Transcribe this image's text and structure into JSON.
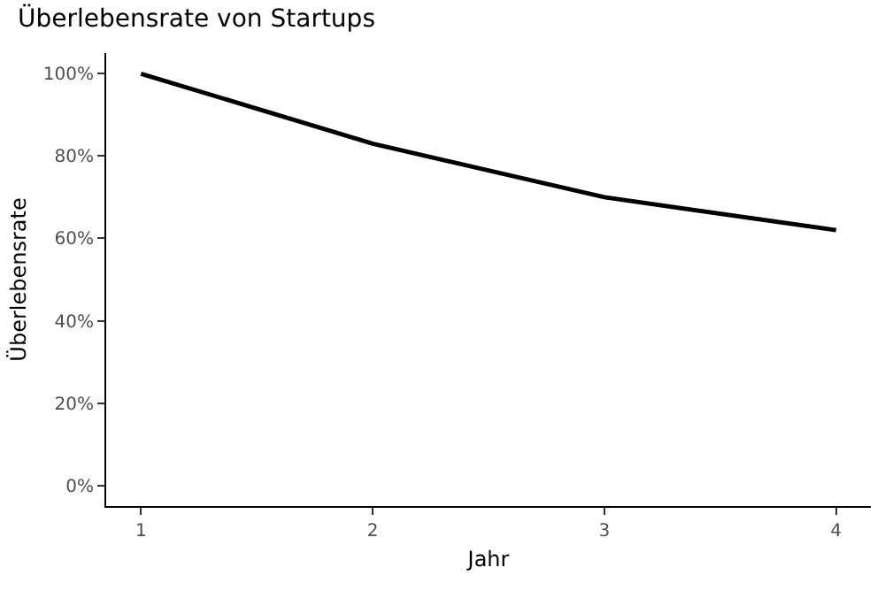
{
  "chart_data": {
    "type": "line",
    "title": "Überlebensrate von Startups",
    "xlabel": "Jahr",
    "ylabel": "Überlebensrate",
    "x": [
      1,
      2,
      3,
      4
    ],
    "series": [
      {
        "color": "#000000",
        "values": [
          100,
          83,
          70,
          62
        ]
      }
    ],
    "xlim": [
      0.85,
      4.15
    ],
    "xticks": [
      1,
      2,
      3,
      4
    ],
    "ylim": [
      -5,
      105
    ],
    "yticks": [
      {
        "value": 0,
        "label": "0%"
      },
      {
        "value": 20,
        "label": "20%"
      },
      {
        "value": 40,
        "label": "40%"
      },
      {
        "value": 60,
        "label": "60%"
      },
      {
        "value": 80,
        "label": "80%"
      },
      {
        "value": 100,
        "label": "100%"
      }
    ],
    "marker": "none",
    "line_style": "solid"
  }
}
